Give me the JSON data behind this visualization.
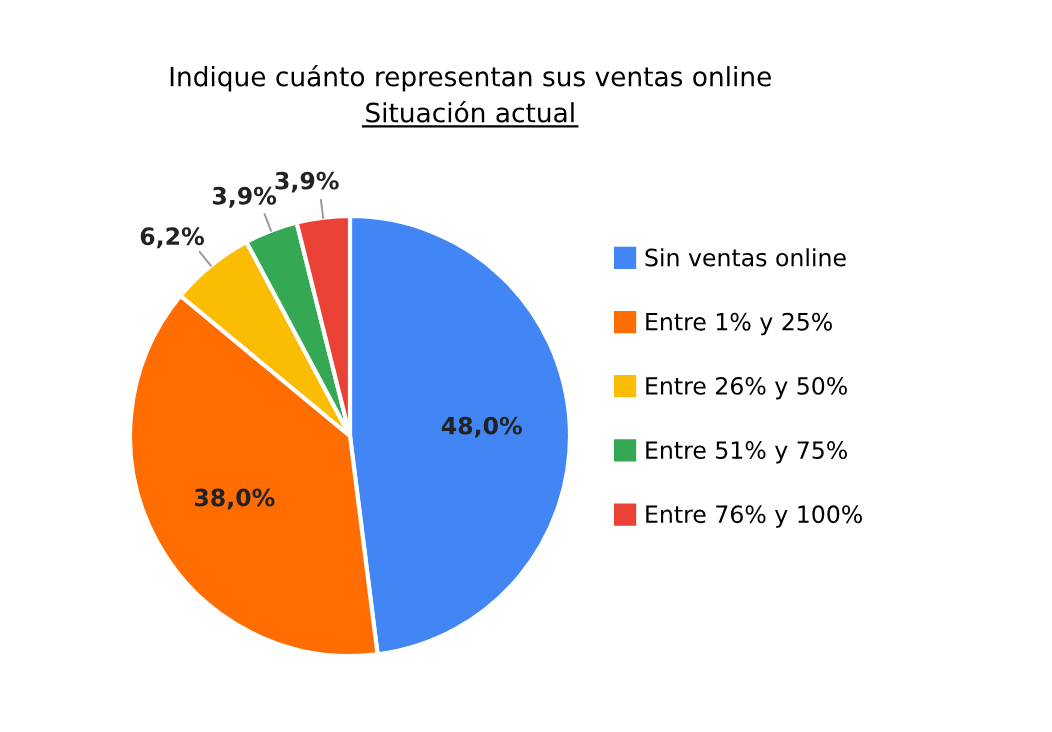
{
  "chart_data": {
    "type": "pie",
    "title": "Indique cuánto representan sus ventas online",
    "subtitle": "Situación actual",
    "categories": [
      "Sin ventas online",
      "Entre 1% y 25%",
      "Entre 26% y 50%",
      "Entre 51% y 75%",
      "Entre 76% y 100%"
    ],
    "values": [
      48.0,
      38.0,
      6.2,
      3.9,
      3.9
    ],
    "value_labels": [
      "48,0%",
      "38,0%",
      "6,2%",
      "3,9%",
      "3,9%"
    ],
    "colors": [
      "#4285f4",
      "#ff6d01",
      "#fbbc04",
      "#34a853",
      "#ea4335"
    ],
    "legend": "right"
  }
}
